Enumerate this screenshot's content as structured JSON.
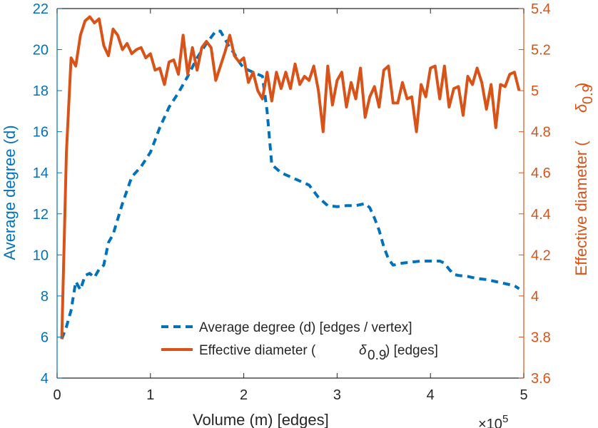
{
  "chart_data": {
    "type": "line",
    "xlabel": "Volume (m) [edges]",
    "x_exponent_label": "×10",
    "x_exponent_power": "5",
    "xlim": [
      0,
      500000
    ],
    "xticks": [
      0,
      100000,
      200000,
      300000,
      400000,
      500000
    ],
    "xtick_labels": [
      "0",
      "1",
      "2",
      "3",
      "4",
      "5"
    ],
    "y_left": {
      "label": "Average degree (d)",
      "lim": [
        4,
        22
      ],
      "ticks": [
        4,
        6,
        8,
        10,
        12,
        14,
        16,
        18,
        20,
        22
      ],
      "tick_labels": [
        "4",
        "6",
        "8",
        "10",
        "12",
        "14",
        "16",
        "18",
        "20",
        "22"
      ],
      "color": "#0072BD"
    },
    "y_right": {
      "label_text": "Effective diameter (",
      "label_symbol": "δ",
      "label_sub": "0.9",
      "label_close": ")",
      "lim": [
        3.6,
        5.4
      ],
      "ticks": [
        3.6,
        3.8,
        4.0,
        4.2,
        4.4,
        4.6,
        4.8,
        5.0,
        5.2,
        5.4
      ],
      "tick_labels": [
        "3.6",
        "3.8",
        "4",
        "4.2",
        "4.4",
        "4.6",
        "4.8",
        "5",
        "5.2",
        "5.4"
      ],
      "color": "#D95319"
    },
    "series": [
      {
        "name": "Average degree (d) [edges / vertex]",
        "axis": "left",
        "style": "dashed",
        "color": "#0072BD",
        "x": [
          5000,
          10000,
          15000,
          20000,
          25000,
          30000,
          35000,
          40000,
          45000,
          50000,
          55000,
          60000,
          70000,
          80000,
          90000,
          100000,
          110000,
          120000,
          130000,
          140000,
          150000,
          160000,
          165000,
          170000,
          175000,
          180000,
          185000,
          190000,
          195000,
          200000,
          210000,
          220000,
          225000,
          230000,
          240000,
          250000,
          260000,
          270000,
          275000,
          280000,
          290000,
          300000,
          310000,
          320000,
          330000,
          335000,
          340000,
          345000,
          350000,
          355000,
          360000,
          370000,
          380000,
          390000,
          400000,
          410000,
          415000,
          420000,
          425000,
          430000,
          440000,
          450000,
          460000,
          470000,
          480000,
          490000,
          495000
        ],
        "y": [
          5.9,
          6.5,
          7.3,
          8.7,
          8.3,
          9.0,
          9.1,
          8.9,
          9.3,
          9.5,
          10.6,
          11.0,
          12.5,
          13.8,
          14.3,
          15.0,
          16.2,
          17.2,
          17.9,
          18.7,
          19.6,
          20.3,
          20.6,
          20.9,
          20.9,
          20.5,
          20.1,
          19.8,
          19.4,
          19.1,
          18.9,
          18.7,
          17.0,
          14.4,
          14.0,
          13.8,
          13.6,
          13.4,
          13.1,
          12.8,
          12.4,
          12.35,
          12.4,
          12.4,
          12.5,
          12.3,
          11.8,
          11.2,
          10.4,
          9.8,
          9.5,
          9.6,
          9.65,
          9.7,
          9.7,
          9.7,
          9.6,
          9.3,
          9.05,
          9.0,
          8.95,
          8.85,
          8.8,
          8.7,
          8.6,
          8.5,
          8.35
        ]
      },
      {
        "name": "Effective diameter (δ0.9) [edges]",
        "legend_text": "Effective diameter (",
        "legend_symbol": "δ",
        "legend_sub": "0.9",
        "legend_close": ") [edges]",
        "axis": "right",
        "style": "solid",
        "color": "#D95319",
        "x": [
          5000,
          10000,
          15000,
          20000,
          25000,
          30000,
          35000,
          40000,
          45000,
          50000,
          55000,
          60000,
          65000,
          70000,
          75000,
          80000,
          85000,
          90000,
          95000,
          100000,
          105000,
          110000,
          115000,
          120000,
          125000,
          130000,
          135000,
          140000,
          145000,
          150000,
          155000,
          160000,
          165000,
          170000,
          175000,
          180000,
          185000,
          190000,
          195000,
          200000,
          205000,
          210000,
          215000,
          220000,
          225000,
          230000,
          235000,
          240000,
          245000,
          250000,
          255000,
          260000,
          265000,
          270000,
          275000,
          280000,
          285000,
          290000,
          295000,
          300000,
          305000,
          310000,
          315000,
          320000,
          325000,
          330000,
          335000,
          340000,
          345000,
          350000,
          355000,
          360000,
          365000,
          370000,
          375000,
          380000,
          385000,
          390000,
          395000,
          400000,
          405000,
          410000,
          415000,
          420000,
          425000,
          430000,
          435000,
          440000,
          445000,
          450000,
          455000,
          460000,
          465000,
          470000,
          475000,
          480000,
          485000,
          490000,
          495000
        ],
        "y": [
          3.79,
          4.7,
          5.16,
          5.12,
          5.27,
          5.34,
          5.36,
          5.33,
          5.35,
          5.22,
          5.17,
          5.3,
          5.27,
          5.2,
          5.23,
          5.18,
          5.2,
          5.21,
          5.16,
          5.18,
          5.1,
          5.11,
          5.03,
          5.14,
          5.15,
          5.08,
          5.27,
          5.08,
          5.21,
          5.1,
          5.21,
          5.24,
          5.21,
          5.05,
          5.12,
          5.19,
          5.27,
          5.17,
          5.14,
          5.16,
          5.04,
          5.09,
          5.0,
          4.96,
          5.09,
          4.95,
          5.09,
          5.01,
          5.09,
          5.01,
          5.13,
          5.03,
          5.07,
          5.05,
          5.12,
          5.0,
          4.8,
          5.12,
          4.93,
          5.05,
          5.09,
          4.92,
          5.04,
          4.96,
          5.11,
          4.87,
          4.97,
          5.02,
          4.92,
          5.1,
          5.12,
          4.94,
          4.94,
          5.04,
          4.96,
          4.97,
          4.8,
          5.03,
          4.97,
          5.11,
          5.12,
          4.96,
          5.12,
          4.92,
          5.01,
          5.02,
          4.88,
          5.07,
          5.03,
          5.11,
          5.04,
          4.91,
          5.03,
          4.82,
          5.03,
          5.02,
          5.08,
          5.09,
          5.0
        ]
      }
    ]
  }
}
